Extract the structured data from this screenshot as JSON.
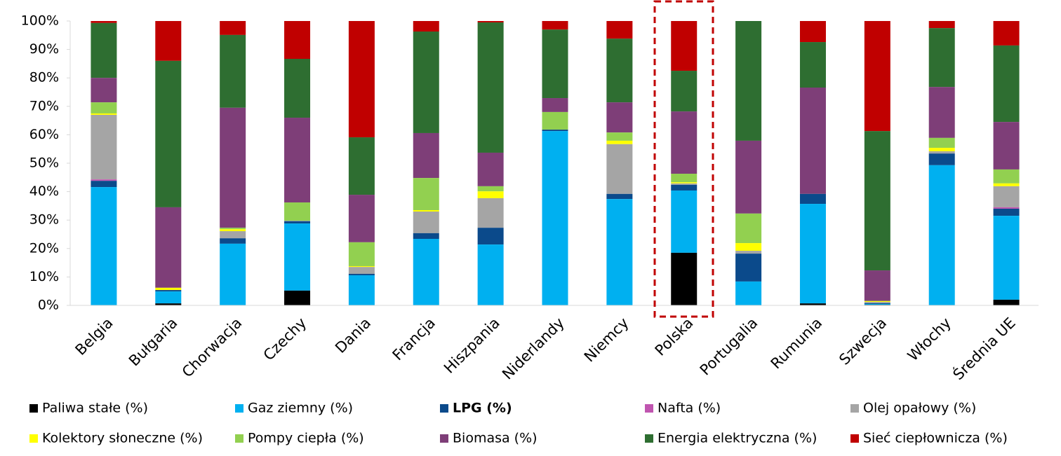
{
  "chart_data": {
    "type": "stacked_bar",
    "categories": [
      "Belgia",
      "Bułgaria",
      "Chorwacja",
      "Czechy",
      "Dania",
      "Francja",
      "Hiszpania",
      "Niderlandy",
      "Niemcy",
      "Polska",
      "Portugalia",
      "Rumunia",
      "Szwecja",
      "Włochy",
      "Średnia UE"
    ],
    "ylim": [
      0,
      100
    ],
    "yticks": [
      {
        "value": 0,
        "label": "0%"
      },
      {
        "value": 10,
        "label": "10%"
      },
      {
        "value": 20,
        "label": "20%"
      },
      {
        "value": 30,
        "label": "30%"
      },
      {
        "value": 40,
        "label": "40%"
      },
      {
        "value": 50,
        "label": "50%"
      },
      {
        "value": 60,
        "label": "60%"
      },
      {
        "value": 70,
        "label": "70%"
      },
      {
        "value": 80,
        "label": "80%"
      },
      {
        "value": 90,
        "label": "90%"
      },
      {
        "value": 100,
        "label": "100%"
      }
    ],
    "series": [
      {
        "name": "Paliwa stałe (%)",
        "color": "#000000",
        "values": [
          0,
          0.7,
          0,
          5.2,
          0,
          0,
          0,
          0,
          0,
          18.5,
          0,
          0.7,
          0.2,
          0,
          2
        ]
      },
      {
        "name": "Gaz ziemny (%)",
        "color": "#00b0f0",
        "values": [
          41.6,
          4.2,
          21.7,
          23.6,
          10.6,
          23.4,
          21.4,
          61.3,
          37.4,
          21.9,
          8.4,
          35,
          0.3,
          49.3,
          29.5
        ]
      },
      {
        "name": "LPG (%)",
        "color": "#0b4a8b",
        "bold": true,
        "values": [
          2.2,
          0.5,
          1.9,
          0.8,
          0.5,
          2,
          5.9,
          0.5,
          1.8,
          2,
          9.8,
          3.5,
          0.3,
          4.1,
          2.5
        ]
      },
      {
        "name": "Nafta (%)",
        "color": "#c055b0",
        "values": [
          0.5,
          0,
          0,
          0,
          0,
          0,
          0,
          0,
          0,
          0,
          0,
          0,
          0,
          0,
          0.5
        ]
      },
      {
        "name": "Olej opałowy (%)",
        "color": "#a5a5a5",
        "values": [
          22.7,
          0,
          2.5,
          0.2,
          2.4,
          7.6,
          10.4,
          0,
          17.5,
          0.5,
          1,
          0,
          0.4,
          0.8,
          7.4
        ]
      },
      {
        "name": "Kolektory słoneczne (%)",
        "color": "#ffff00",
        "values": [
          0.5,
          0.8,
          0.7,
          0,
          0.3,
          0.5,
          2.4,
          0,
          1.2,
          0.4,
          2.7,
          0,
          0.3,
          1.2,
          1
        ]
      },
      {
        "name": "Pompy ciepła (%)",
        "color": "#92d050",
        "values": [
          3.9,
          0,
          0.5,
          6.4,
          8.4,
          11.3,
          1.8,
          6.2,
          2.9,
          3,
          10.4,
          0,
          0.1,
          3.5,
          4.9
        ]
      },
      {
        "name": "Biomasa (%)",
        "color": "#7e3e78",
        "values": [
          8.6,
          28.3,
          42.2,
          29.8,
          16.7,
          15.8,
          11.8,
          4.9,
          10.6,
          21.9,
          25.6,
          37.4,
          10.7,
          17.9,
          16.7
        ]
      },
      {
        "name": "Energia elektryczna (%)",
        "color": "#2e6e31",
        "values": [
          19.3,
          51.5,
          25.6,
          20.7,
          20.2,
          35.7,
          45.8,
          24.1,
          22.4,
          14.3,
          42.1,
          16,
          49,
          20.7,
          26.9
        ]
      },
      {
        "name": "Sieć ciepłownicza (%)",
        "color": "#c00000",
        "values": [
          0.7,
          14,
          4.9,
          13.3,
          40.9,
          3.7,
          0.5,
          3,
          6.2,
          17.5,
          0,
          7.4,
          38.7,
          2.5,
          8.6
        ]
      }
    ]
  }
}
